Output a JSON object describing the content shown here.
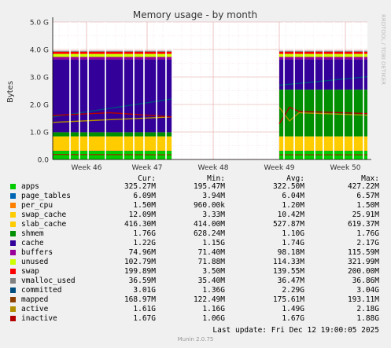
{
  "chart_data": {
    "type": "area",
    "title": "Memory usage - by month",
    "ylabel": "Bytes",
    "ylim": [
      0,
      5
    ],
    "yunit": "G",
    "yticks": [
      "0.0",
      "1.0 G",
      "2.0 G",
      "3.0 G",
      "4.0 G",
      "5.0 G"
    ],
    "xticks": [
      "Week 46",
      "Week 47",
      "Week 48",
      "Week 49",
      "Week 50"
    ],
    "side_label": "RRDTOOL / TOBI OETIKER",
    "grid": true,
    "columns": [
      "Cur:",
      "Min:",
      "Avg:",
      "Max:"
    ],
    "series": [
      {
        "name": "apps",
        "color": "#00cc00",
        "cur": "325.27M",
        "min": "195.47M",
        "avg": "322.50M",
        "max": "427.22M",
        "stack": 0.32
      },
      {
        "name": "page_tables",
        "color": "#0066b3",
        "cur": "6.09M",
        "min": "3.94M",
        "avg": "6.04M",
        "max": "6.57M",
        "stack": 0.006
      },
      {
        "name": "per_cpu",
        "color": "#ff8000",
        "cur": "1.50M",
        "min": "960.00k",
        "avg": "1.20M",
        "max": "1.50M",
        "stack": 0.0015
      },
      {
        "name": "swap_cache",
        "color": "#ffcc00",
        "cur": "12.09M",
        "min": "3.33M",
        "avg": "10.42M",
        "max": "25.91M",
        "stack": 0.012
      },
      {
        "name": "slab_cache",
        "color": "#ffcc00",
        "cur": "416.30M",
        "min": "414.00M",
        "avg": "527.87M",
        "max": "619.37M",
        "stack": 0.5
      },
      {
        "name": "shmem",
        "color": "#008f00",
        "cur": "1.76G",
        "min": "628.24M",
        "avg": "1.10G",
        "max": "1.76G",
        "stack": 0.15
      },
      {
        "name": "cache",
        "color": "#330099",
        "cur": "1.22G",
        "min": "1.15G",
        "avg": "1.74G",
        "max": "2.17G",
        "stack": 2.65
      },
      {
        "name": "buffers",
        "color": "#990099",
        "cur": "74.96M",
        "min": "71.40M",
        "avg": "98.18M",
        "max": "115.59M",
        "stack": 0.09
      },
      {
        "name": "unused",
        "color": "#ccff00",
        "cur": "102.79M",
        "min": "71.88M",
        "avg": "114.33M",
        "max": "321.99M",
        "stack": 0.11
      },
      {
        "name": "swap",
        "color": "#ff0000",
        "cur": "199.89M",
        "min": "3.50M",
        "avg": "139.55M",
        "max": "200.00M",
        "stack": 0.08
      },
      {
        "name": "vmalloc_used",
        "color": "#808080",
        "cur": "36.59M",
        "min": "35.40M",
        "avg": "36.47M",
        "max": "36.86M",
        "stack": 0.035
      },
      {
        "name": "committed",
        "color": "#004d80",
        "cur": "3.01G",
        "min": "1.36G",
        "avg": "2.29G",
        "max": "3.04G",
        "line": true
      },
      {
        "name": "mapped",
        "color": "#8c3d00",
        "cur": "168.97M",
        "min": "122.49M",
        "avg": "175.61M",
        "max": "193.11M",
        "line": true
      },
      {
        "name": "active",
        "color": "#b38f00",
        "cur": "1.61G",
        "min": "1.16G",
        "avg": "1.49G",
        "max": "2.18G",
        "line": true
      },
      {
        "name": "inactive",
        "color": "#b30000",
        "cur": "1.67G",
        "min": "1.06G",
        "avg": "1.67G",
        "max": "1.88G",
        "line": true
      }
    ]
  },
  "footer": {
    "last_update": "Last update: Fri Dec 12 19:00:05 2025",
    "munin": "Munin 2.0.75"
  }
}
